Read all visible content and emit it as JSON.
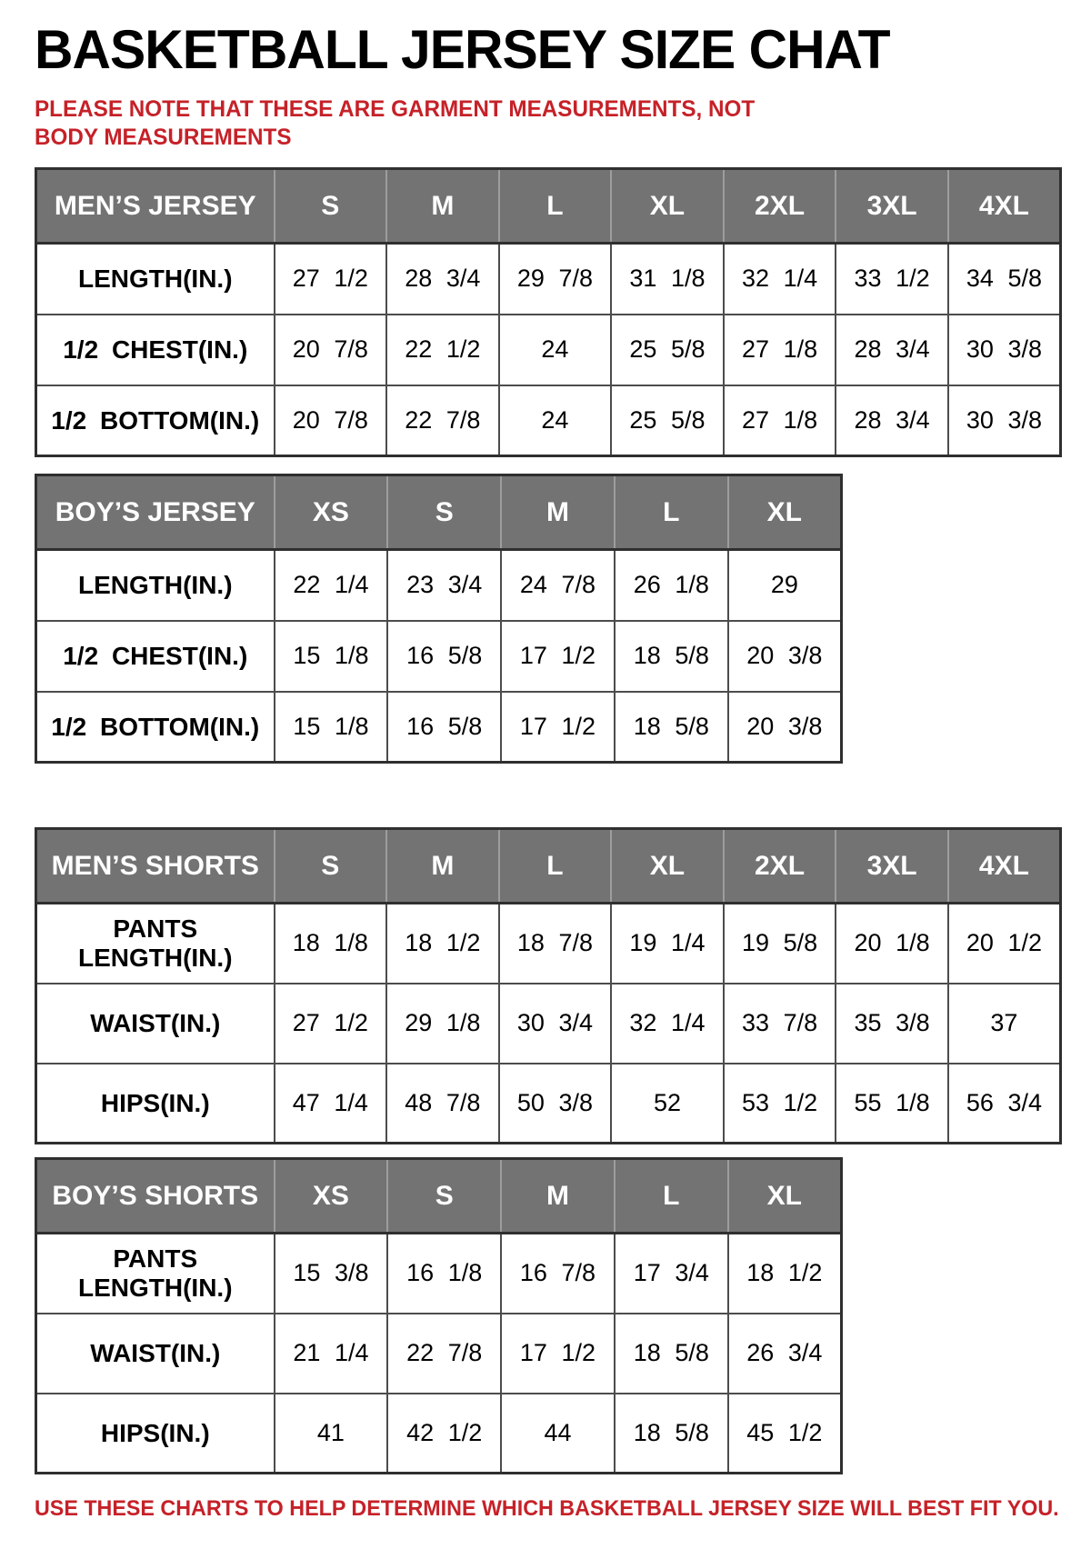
{
  "page": {
    "title": "BASKETBALL JERSEY SIZE CHAT",
    "note": "PLEASE NOTE THAT THESE ARE GARMENT MEASUREMENTS, NOT BODY MEASUREMENTS",
    "footer": "USE THESE CHARTS TO HELP DETERMINE WHICH BASKETBALL JERSEY SIZE WILL BEST FIT YOU."
  },
  "colors": {
    "accent_red": "#c62128",
    "header_gray": "#737373",
    "border_dark": "#2f2f2f",
    "text_black": "#000000"
  },
  "tables": [
    {
      "name": "MEN’S JERSEY",
      "sizes": [
        "S",
        "M",
        "L",
        "XL",
        "2XL",
        "3XL",
        "4XL"
      ],
      "rows": [
        {
          "label": "LENGTH(IN.)",
          "values": [
            "27 1/2",
            "28 3/4",
            "29 7/8",
            "31 1/8",
            "32 1/4",
            "33 1/2",
            "34 5/8"
          ]
        },
        {
          "label": "1/2 CHEST(IN.)",
          "values": [
            "20 7/8",
            "22 1/2",
            "24",
            "25 5/8",
            "27 1/8",
            "28 3/4",
            "30 3/8"
          ]
        },
        {
          "label": "1/2 BOTTOM(IN.)",
          "values": [
            "20 7/8",
            "22 7/8",
            "24",
            "25 5/8",
            "27 1/8",
            "28 3/4",
            "30 3/8"
          ]
        }
      ]
    },
    {
      "name": "BOY’S JERSEY",
      "sizes": [
        "XS",
        "S",
        "M",
        "L",
        "XL"
      ],
      "rows": [
        {
          "label": "LENGTH(IN.)",
          "values": [
            "22 1/4",
            "23 3/4",
            "24 7/8",
            "26 1/8",
            "29"
          ]
        },
        {
          "label": "1/2 CHEST(IN.)",
          "values": [
            "15 1/8",
            "16 5/8",
            "17 1/2",
            "18 5/8",
            "20 3/8"
          ]
        },
        {
          "label": "1/2 BOTTOM(IN.)",
          "values": [
            "15 1/8",
            "16 5/8",
            "17 1/2",
            "18 5/8",
            "20 3/8"
          ]
        }
      ]
    },
    {
      "name": "MEN’S SHORTS",
      "sizes": [
        "S",
        "M",
        "L",
        "XL",
        "2XL",
        "3XL",
        "4XL"
      ],
      "rows": [
        {
          "label": "PANTS LENGTH(IN.)",
          "values": [
            "18 1/8",
            "18 1/2",
            "18 7/8",
            "19 1/4",
            "19 5/8",
            "20 1/8",
            "20 1/2"
          ]
        },
        {
          "label": "WAIST(IN.)",
          "values": [
            "27 1/2",
            "29 1/8",
            "30 3/4",
            "32 1/4",
            "33 7/8",
            "35 3/8",
            "37"
          ]
        },
        {
          "label": "HIPS(IN.)",
          "values": [
            "47 1/4",
            "48 7/8",
            "50 3/8",
            "52",
            "53 1/2",
            "55 1/8",
            "56 3/4"
          ]
        }
      ]
    },
    {
      "name": "BOY’S SHORTS",
      "sizes": [
        "XS",
        "S",
        "M",
        "L",
        "XL"
      ],
      "rows": [
        {
          "label": "PANTS LENGTH(IN.)",
          "values": [
            "15 3/8",
            "16 1/8",
            "16 7/8",
            "17 3/4",
            "18 1/2"
          ]
        },
        {
          "label": "WAIST(IN.)",
          "values": [
            "21 1/4",
            "22 7/8",
            "17 1/2",
            "18 5/8",
            "26 3/4"
          ]
        },
        {
          "label": "HIPS(IN.)",
          "values": [
            "41",
            "42 1/2",
            "44",
            "18 5/8",
            "45 1/2"
          ]
        }
      ]
    }
  ]
}
